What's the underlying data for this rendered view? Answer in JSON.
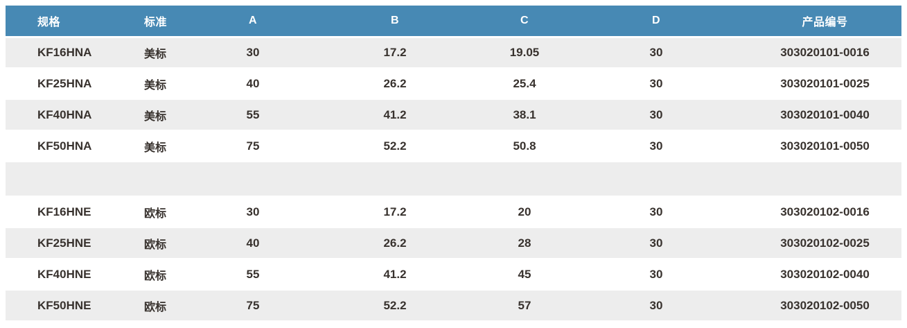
{
  "colors": {
    "header_bg": "#4789b4",
    "header_text": "#ffffff",
    "row_alt_bg": "#ededed",
    "row_bg": "#ffffff",
    "cell_text": "#38322e"
  },
  "table": {
    "headers": [
      "规格",
      "标准",
      "A",
      "B",
      "C",
      "D",
      "产品编号"
    ],
    "rows": [
      [
        "KF16HNA",
        "美标",
        "30",
        "17.2",
        "19.05",
        "30",
        "303020101-0016"
      ],
      [
        "KF25HNA",
        "美标",
        "40",
        "26.2",
        "25.4",
        "30",
        "303020101-0025"
      ],
      [
        "KF40HNA",
        "美标",
        "55",
        "41.2",
        "38.1",
        "30",
        "303020101-0040"
      ],
      [
        "KF50HNA",
        "美标",
        "75",
        "52.2",
        "50.8",
        "30",
        "303020101-0050"
      ],
      [
        "",
        "",
        "",
        "",
        "",
        "",
        ""
      ],
      [
        "KF16HNE",
        "欧标",
        "30",
        "17.2",
        "20",
        "30",
        "303020102-0016"
      ],
      [
        "KF25HNE",
        "欧标",
        "40",
        "26.2",
        "28",
        "30",
        "303020102-0025"
      ],
      [
        "KF40HNE",
        "欧标",
        "55",
        "41.2",
        "45",
        "30",
        "303020102-0040"
      ],
      [
        "KF50HNE",
        "欧标",
        "75",
        "52.2",
        "57",
        "30",
        "303020102-0050"
      ]
    ]
  }
}
